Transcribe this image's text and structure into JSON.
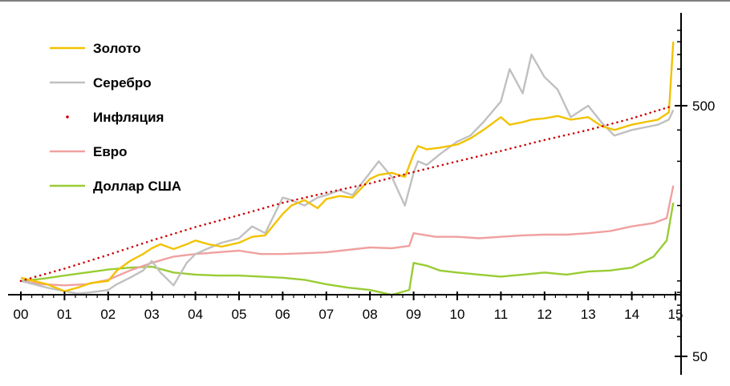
{
  "chart_data": {
    "type": "line",
    "title": "",
    "xlabel": "",
    "ylabel": "",
    "x_categories": [
      "00",
      "01",
      "02",
      "03",
      "04",
      "05",
      "06",
      "07",
      "08",
      "09",
      "10",
      "11",
      "12",
      "13",
      "14",
      "15"
    ],
    "y_scale": "log",
    "ylim": [
      50,
      1000
    ],
    "y_tick_labels": [
      "500",
      "50"
    ],
    "y_tick_values": [
      500,
      50
    ],
    "legend_position": "top-left",
    "grid": false,
    "series": [
      {
        "name": "Золото",
        "color": "#f2c200",
        "style": "solid",
        "x": [
          0,
          0.3,
          0.6,
          1,
          1.3,
          1.6,
          2,
          2.2,
          2.5,
          2.8,
          3,
          3.2,
          3.5,
          3.8,
          4,
          4.3,
          4.6,
          5,
          5.3,
          5.6,
          6,
          6.2,
          6.5,
          6.8,
          7,
          7.3,
          7.6,
          8,
          8.2,
          8.5,
          8.8,
          9,
          9.1,
          9.3,
          9.6,
          10,
          10.3,
          10.6,
          11,
          11.2,
          11.5,
          11.7,
          12,
          12.3,
          12.6,
          13,
          13.3,
          13.6,
          14,
          14.3,
          14.6,
          14.85,
          14.95
        ],
        "y": [
          103,
          100,
          97,
          91,
          94,
          98,
          100,
          110,
          120,
          128,
          135,
          140,
          134,
          140,
          145,
          140,
          137,
          142,
          150,
          152,
          185,
          200,
          210,
          195,
          212,
          218,
          215,
          255,
          265,
          270,
          260,
          320,
          345,
          335,
          340,
          350,
          370,
          400,
          450,
          420,
          430,
          440,
          445,
          455,
          440,
          450,
          415,
          400,
          420,
          430,
          440,
          470,
          900
        ]
      },
      {
        "name": "Серебро",
        "color": "#c0c0c0",
        "style": "solid",
        "x": [
          0,
          0.3,
          0.6,
          1,
          1.3,
          1.6,
          2,
          2.2,
          2.5,
          2.8,
          3,
          3.2,
          3.5,
          3.8,
          4,
          4.3,
          4.6,
          5,
          5.3,
          5.6,
          6,
          6.2,
          6.5,
          6.8,
          7,
          7.3,
          7.6,
          8,
          8.2,
          8.5,
          8.8,
          9,
          9.1,
          9.3,
          9.6,
          10,
          10.3,
          10.6,
          11,
          11.2,
          11.5,
          11.7,
          12,
          12.3,
          12.6,
          13,
          13.3,
          13.6,
          14,
          14.3,
          14.6,
          14.85,
          14.95
        ],
        "y": [
          100,
          97,
          94,
          91,
          89,
          90,
          92,
          97,
          103,
          110,
          120,
          108,
          96,
          118,
          128,
          135,
          142,
          148,
          165,
          155,
          215,
          210,
          200,
          215,
          220,
          230,
          220,
          270,
          300,
          260,
          200,
          270,
          300,
          290,
          320,
          360,
          380,
          430,
          520,
          700,
          560,
          800,
          650,
          580,
          450,
          500,
          430,
          380,
          400,
          410,
          420,
          440,
          480
        ]
      },
      {
        "name": "Инфляция",
        "color": "#cc0000",
        "style": "dotted",
        "x": [
          0,
          1,
          2,
          3,
          4,
          5,
          6,
          7,
          8,
          9,
          10,
          11,
          12,
          13,
          14,
          14.95
        ],
        "y": [
          100,
          112,
          127,
          145,
          164,
          183,
          205,
          225,
          245,
          272,
          300,
          330,
          365,
          400,
          445,
          500
        ]
      },
      {
        "name": "Евро",
        "color": "#f0a0a0",
        "style": "solid",
        "x": [
          0,
          0.5,
          1,
          1.5,
          2,
          2.5,
          3,
          3.5,
          4,
          4.5,
          5,
          5.5,
          6,
          6.5,
          7,
          7.5,
          8,
          8.5,
          8.9,
          9,
          9.5,
          10,
          10.5,
          11,
          11.5,
          12,
          12.5,
          13,
          13.5,
          14,
          14.5,
          14.8,
          14.95
        ],
        "y": [
          100,
          97,
          96,
          97,
          101,
          110,
          118,
          125,
          128,
          130,
          132,
          128,
          128,
          129,
          130,
          133,
          136,
          135,
          138,
          155,
          150,
          150,
          148,
          150,
          152,
          153,
          153,
          155,
          158,
          165,
          170,
          178,
          240
        ]
      },
      {
        "name": "Доллар США",
        "color": "#99cc33",
        "style": "solid",
        "x": [
          0,
          0.5,
          1,
          1.5,
          2,
          2.5,
          3,
          3.5,
          4,
          4.5,
          5,
          5.5,
          6,
          6.5,
          7,
          7.5,
          8,
          8.5,
          8.9,
          9,
          9.3,
          9.6,
          10,
          10.5,
          11,
          11.5,
          12,
          12.5,
          13,
          13.5,
          14,
          14.5,
          14.8,
          14.95
        ],
        "y": [
          100,
          102,
          105,
          108,
          111,
          113,
          114,
          108,
          106,
          105,
          105,
          104,
          103,
          101,
          97,
          94,
          92,
          88,
          92,
          118,
          115,
          110,
          108,
          106,
          104,
          106,
          108,
          106,
          109,
          110,
          113,
          125,
          145,
          205
        ]
      }
    ]
  },
  "legend": [
    {
      "label": "Золото",
      "color": "#f2c200",
      "style": "solid"
    },
    {
      "label": "Серебро",
      "color": "#c0c0c0",
      "style": "solid"
    },
    {
      "label": "Инфляция",
      "color": "#cc0000",
      "style": "dotted"
    },
    {
      "label": "Евро",
      "color": "#f0a0a0",
      "style": "solid"
    },
    {
      "label": "Доллар США",
      "color": "#99cc33",
      "style": "solid"
    }
  ]
}
